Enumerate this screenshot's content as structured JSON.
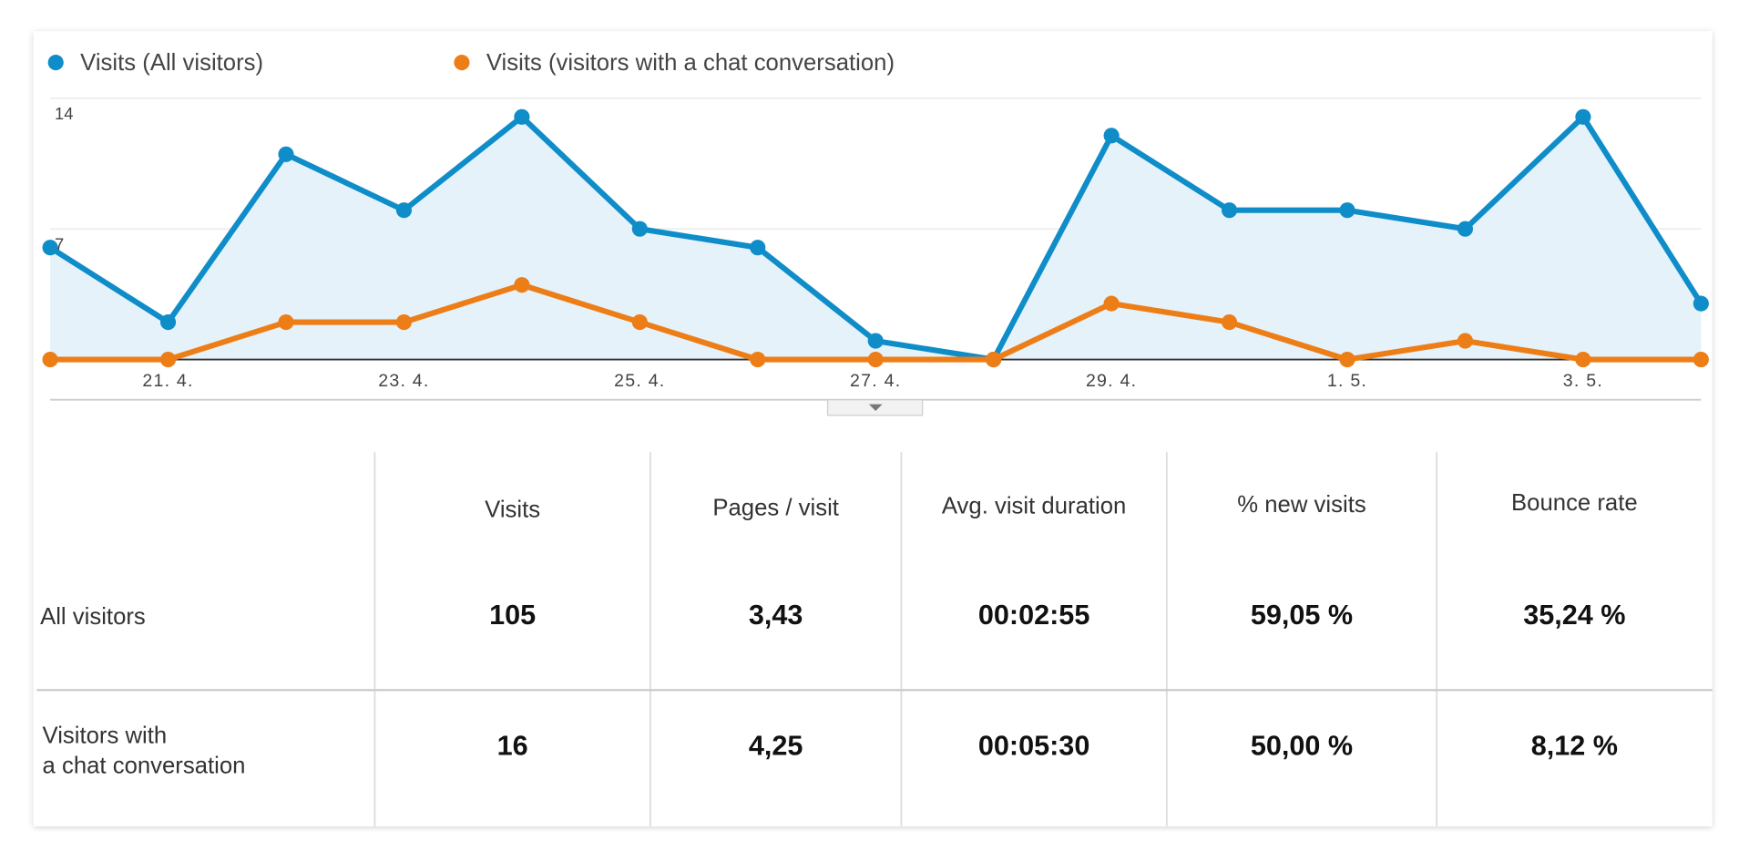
{
  "chart_data": {
    "type": "line",
    "categories": [
      null,
      "21. 4.",
      null,
      "23. 4.",
      null,
      "25. 4.",
      null,
      "27. 4.",
      null,
      "29. 4.",
      null,
      "1. 5.",
      null,
      "3. 5.",
      null
    ],
    "series": [
      {
        "name": "Visits (All visitors)",
        "color": "#0f8dc9",
        "area": true,
        "values": [
          6,
          2,
          11,
          8,
          13,
          7,
          6,
          1,
          0,
          12,
          8,
          8,
          7,
          13,
          3
        ]
      },
      {
        "name": "Visits (visitors with a chat conversation)",
        "color": "#ed7e17",
        "area": false,
        "values": [
          0,
          0,
          2,
          2,
          4,
          2,
          0,
          0,
          0,
          3,
          2,
          0,
          1,
          0,
          0
        ]
      }
    ],
    "ylim": [
      0,
      14
    ],
    "yticks": [
      7,
      14
    ],
    "grid": true
  },
  "table": {
    "columns": [
      "Visits",
      "Pages / visit",
      "Avg. visit duration",
      "% new visits",
      "Bounce rate"
    ],
    "rows": [
      {
        "label": [
          "All visitors"
        ],
        "cells": [
          "105",
          "3,43",
          "00:02:55",
          "59,05 %",
          "35,24 %"
        ]
      },
      {
        "label": [
          "Visitors with",
          "a chat conversation"
        ],
        "cells": [
          "16",
          "4,25",
          "00:05:30",
          "50,00 %",
          "8,12 %"
        ]
      }
    ]
  }
}
